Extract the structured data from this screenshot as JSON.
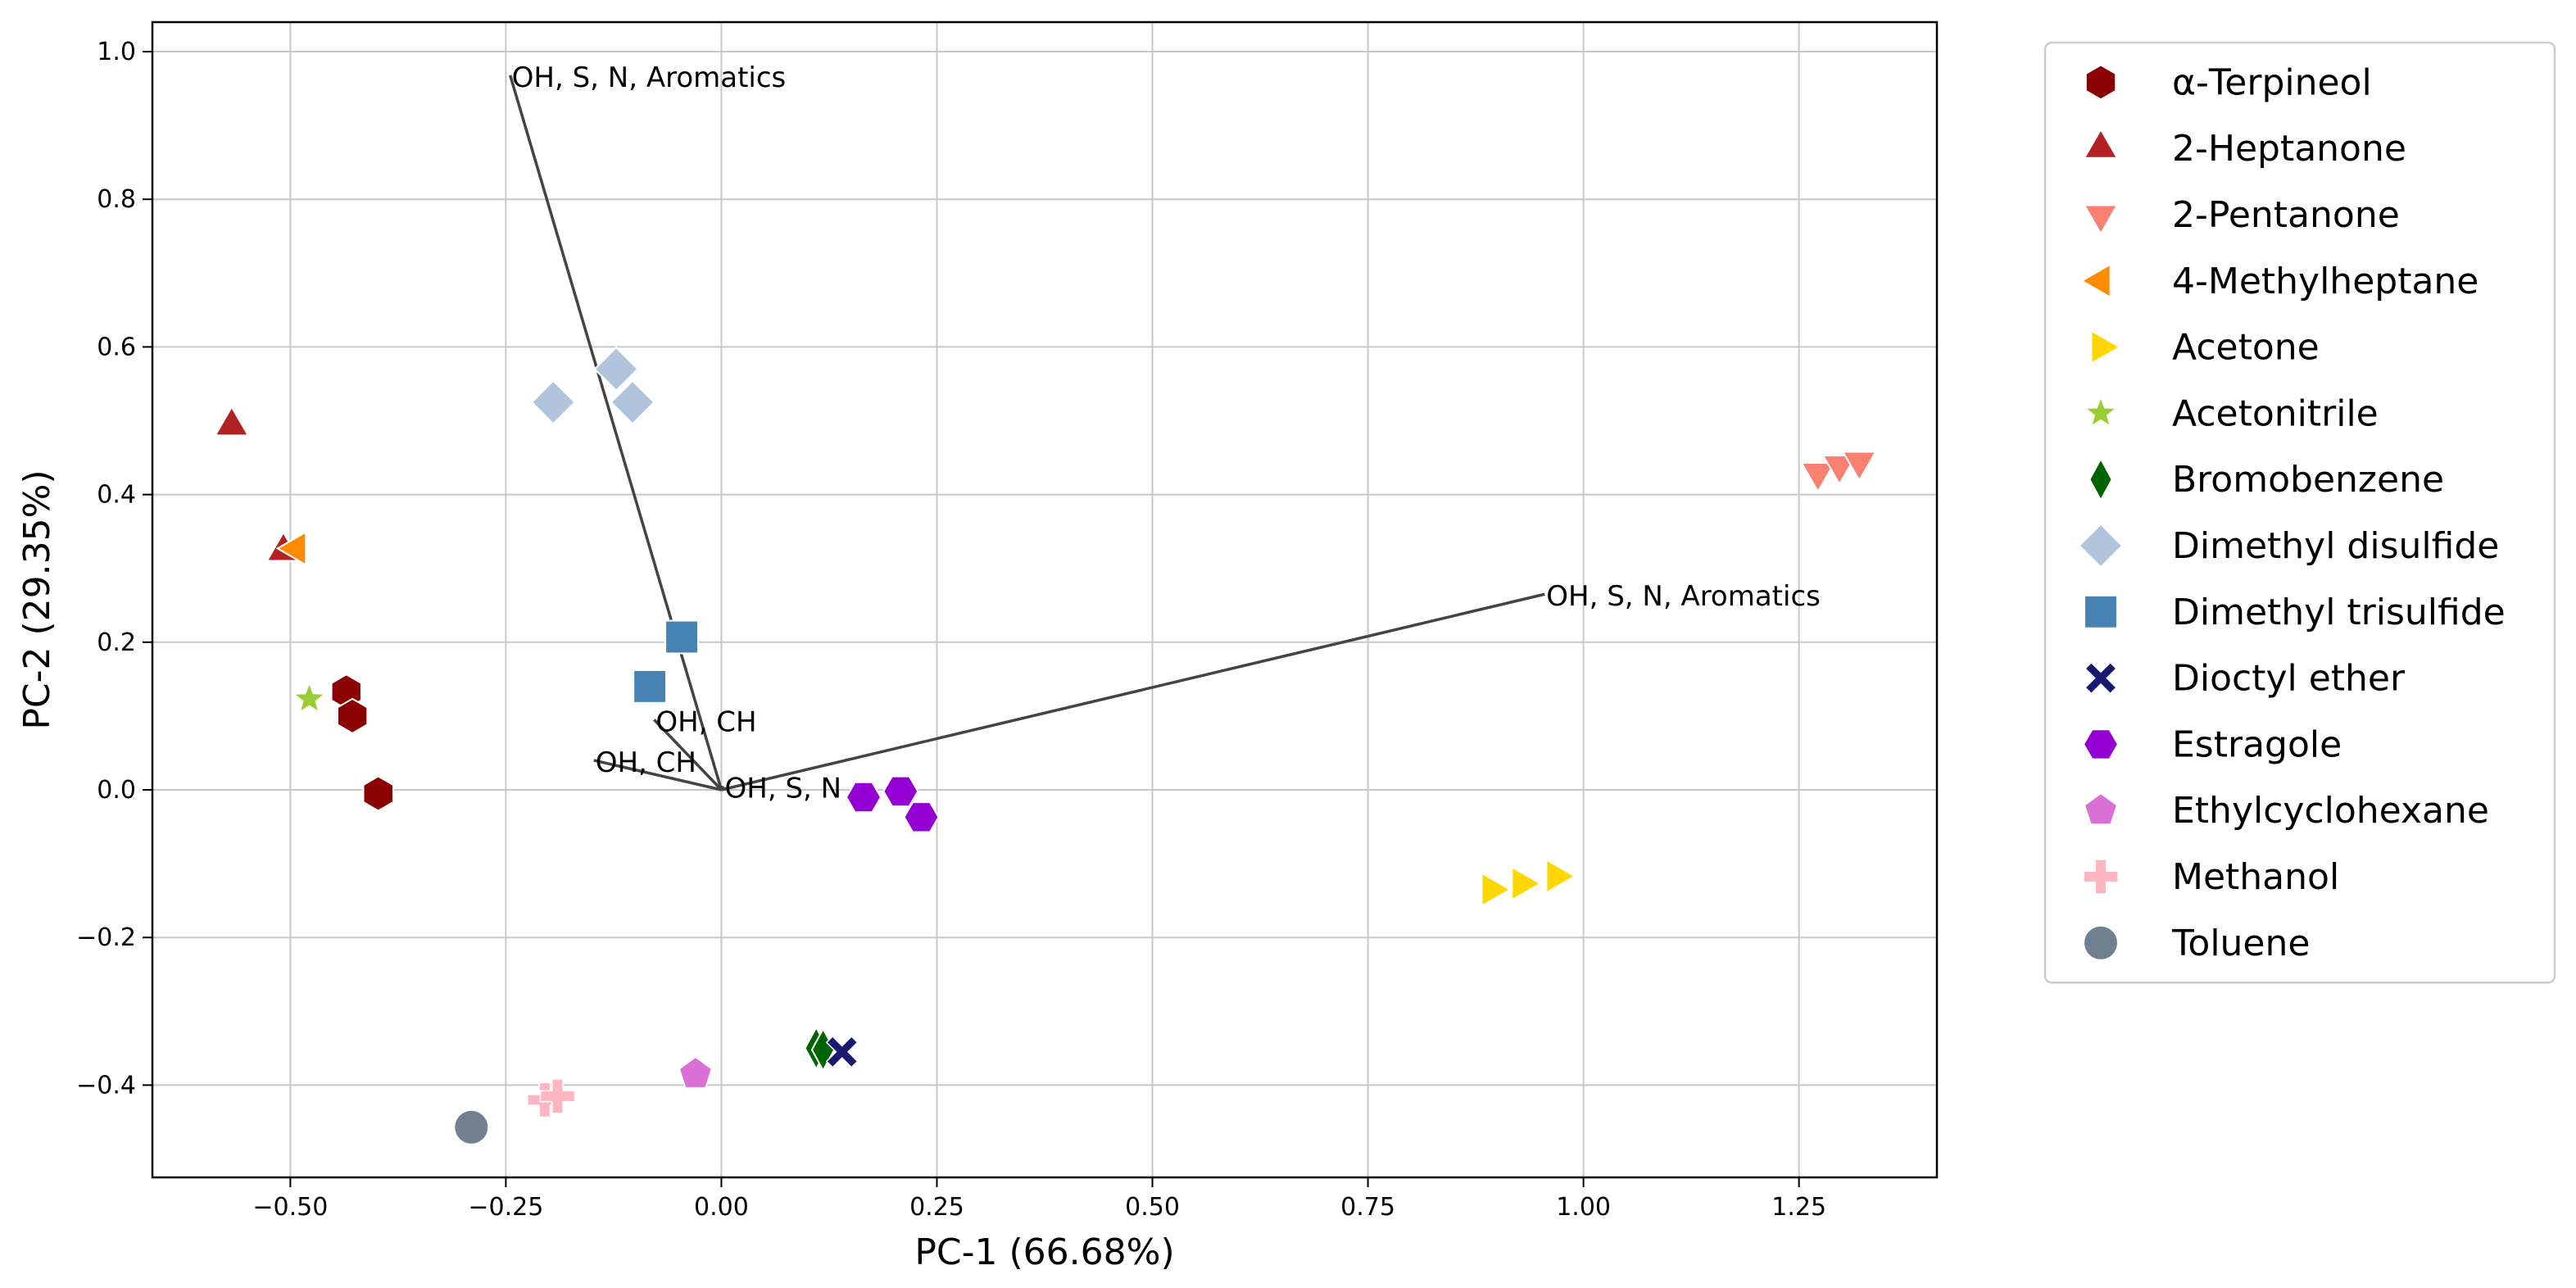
{
  "chart_data": {
    "type": "scatter",
    "title": "",
    "xlabel": "PC-1 (66.68%)",
    "ylabel": "PC-2 (29.35%)",
    "xlim": [
      -0.66,
      1.41
    ],
    "ylim": [
      -0.525,
      1.04
    ],
    "xticks": [
      -0.5,
      -0.25,
      0.0,
      0.25,
      0.5,
      0.75,
      1.0,
      1.25
    ],
    "xtick_labels": [
      "−0.50",
      "−0.25",
      "0.00",
      "0.25",
      "0.50",
      "0.75",
      "1.00",
      "1.25"
    ],
    "yticks": [
      -0.4,
      -0.2,
      0.0,
      0.2,
      0.4,
      0.6,
      0.8,
      1.0
    ],
    "ytick_labels": [
      "−0.4",
      "−0.2",
      "0.0",
      "0.2",
      "0.4",
      "0.6",
      "0.8",
      "1.0"
    ],
    "grid": true,
    "legend_position": "outside-right",
    "series": [
      {
        "name": "α-Terpineol",
        "marker": "hexagon",
        "color": "#8B0000",
        "points": [
          [
            -0.435,
            0.133
          ],
          [
            -0.428,
            0.1
          ],
          [
            -0.398,
            -0.005
          ]
        ]
      },
      {
        "name": "2-Heptanone",
        "marker": "triangle-up",
        "color": "#B22222",
        "points": [
          [
            -0.568,
            0.493
          ],
          [
            -0.508,
            0.323
          ]
        ]
      },
      {
        "name": "2-Pentanone",
        "marker": "triangle-down",
        "color": "#FA8072",
        "points": [
          [
            1.272,
            0.43
          ],
          [
            1.297,
            0.44
          ],
          [
            1.32,
            0.445
          ]
        ]
      },
      {
        "name": "4-Methylheptane",
        "marker": "triangle-left",
        "color": "#FF8C00",
        "points": [
          [
            -0.493,
            0.327
          ]
        ]
      },
      {
        "name": "Acetone",
        "marker": "triangle-right",
        "color": "#FFD700",
        "points": [
          [
            0.893,
            -0.135
          ],
          [
            0.928,
            -0.127
          ],
          [
            0.968,
            -0.117
          ]
        ]
      },
      {
        "name": "Acetonitrile",
        "marker": "star",
        "color": "#9ACD32",
        "points": [
          [
            -0.478,
            0.123
          ]
        ]
      },
      {
        "name": "Bromobenzene",
        "marker": "diamond-thin",
        "color": "#006400",
        "points": [
          [
            0.11,
            -0.35
          ],
          [
            0.118,
            -0.352
          ]
        ]
      },
      {
        "name": "Dimethyl disulfide",
        "marker": "diamond",
        "color": "#B0C4DE",
        "points": [
          [
            -0.195,
            0.525
          ],
          [
            -0.122,
            0.57
          ],
          [
            -0.103,
            0.525
          ]
        ]
      },
      {
        "name": "Dimethyl trisulfide",
        "marker": "square",
        "color": "#4682B4",
        "points": [
          [
            -0.046,
            0.207
          ],
          [
            -0.083,
            0.14
          ]
        ]
      },
      {
        "name": "Dioctyl ether",
        "marker": "x",
        "color": "#191970",
        "points": [
          [
            0.14,
            -0.355
          ]
        ]
      },
      {
        "name": "Estragole",
        "marker": "octagon",
        "color": "#9400D3",
        "points": [
          [
            0.165,
            -0.01
          ],
          [
            0.208,
            -0.002
          ],
          [
            0.232,
            -0.037
          ]
        ]
      },
      {
        "name": "Ethylcyclohexane",
        "marker": "pentagon",
        "color": "#DA70D6",
        "points": [
          [
            -0.03,
            -0.385
          ]
        ]
      },
      {
        "name": "Methanol",
        "marker": "plus",
        "color": "#FFB6C1",
        "points": [
          [
            -0.205,
            -0.42
          ],
          [
            -0.19,
            -0.415
          ]
        ]
      },
      {
        "name": "Toluene",
        "marker": "circle",
        "color": "#708090",
        "points": [
          [
            -0.29,
            -0.457
          ]
        ]
      }
    ],
    "loadings": [
      {
        "label": "OH, S, N, Aromatics",
        "x": -0.245,
        "y": 0.968
      },
      {
        "label": "OH, S, N, Aromatics",
        "x": 0.955,
        "y": 0.265
      },
      {
        "label": "OH, CH",
        "x": -0.078,
        "y": 0.095
      },
      {
        "label": "OH, CH",
        "x": -0.148,
        "y": 0.04
      },
      {
        "label": "OH, S, N",
        "x": 0.002,
        "y": 0.005
      }
    ]
  }
}
